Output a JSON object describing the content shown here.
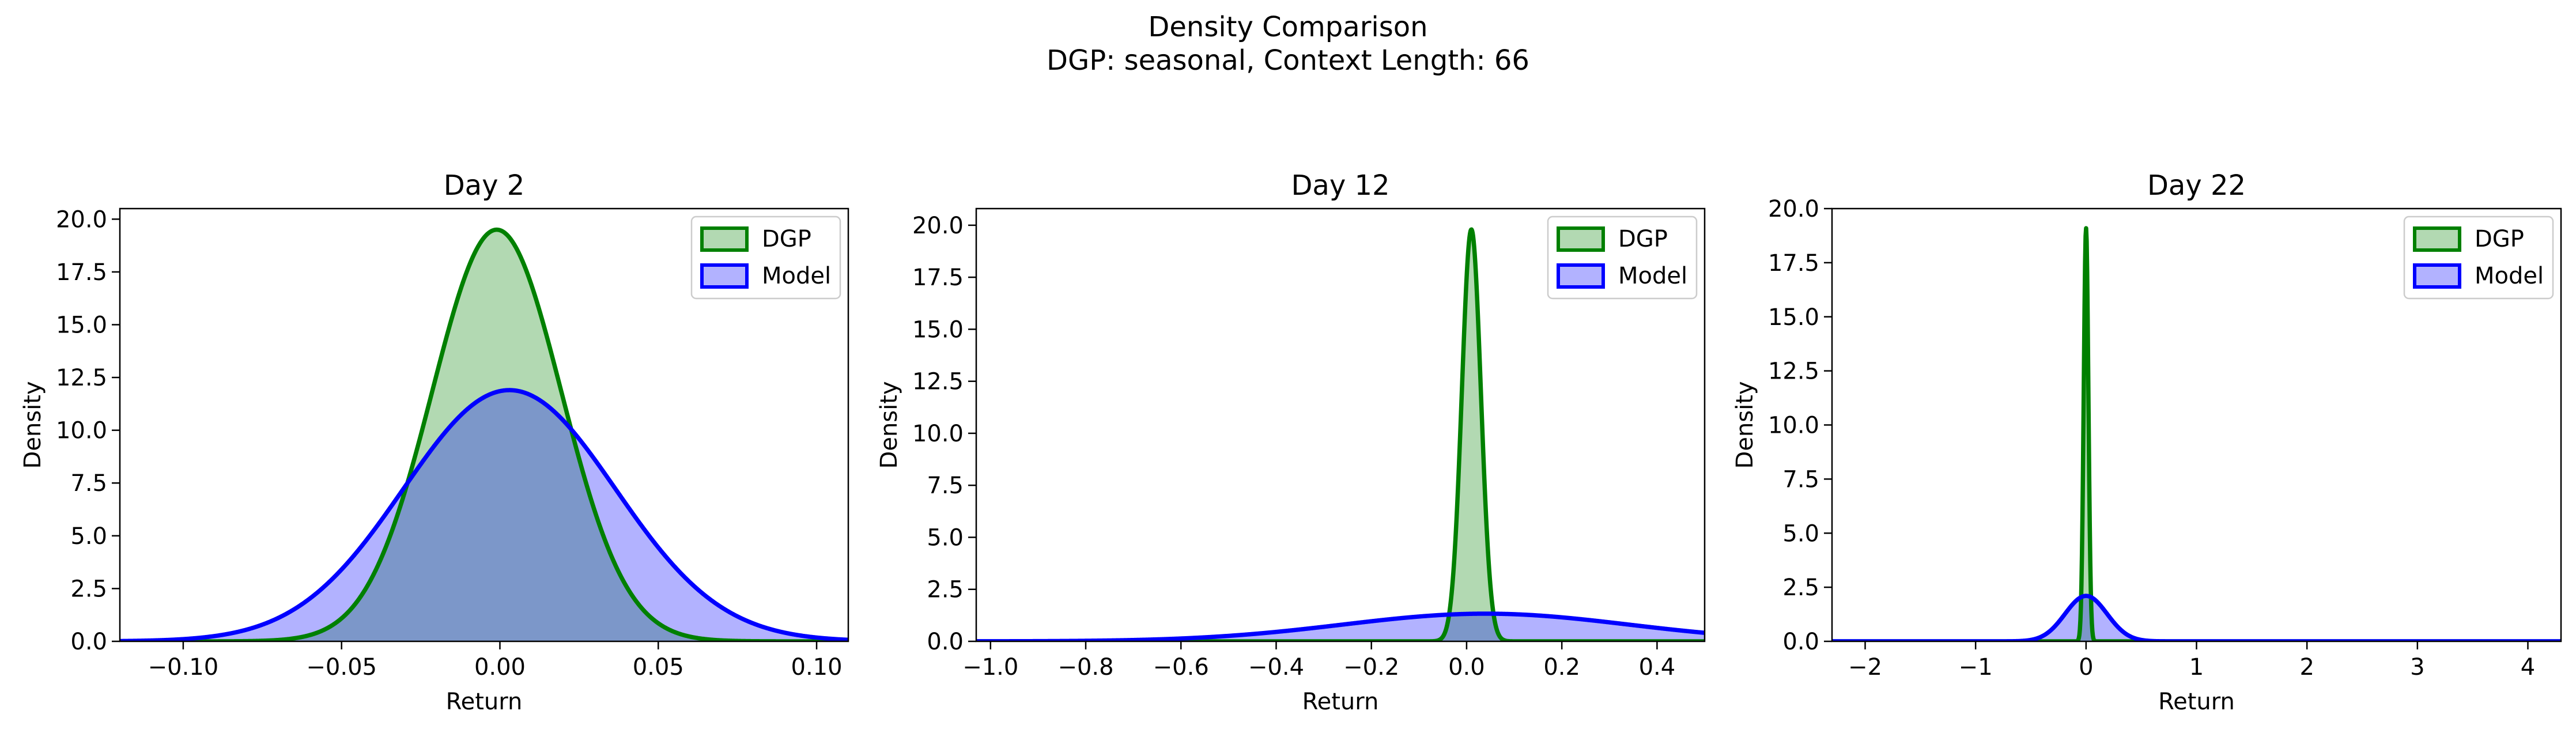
{
  "figure": {
    "suptitle_line1": "Density Comparison",
    "suptitle_line2": "DGP: seasonal, Context Length: 66"
  },
  "colors": {
    "dgp_line": "#008000",
    "dgp_fill": "#b2d8b2",
    "model_line": "#0000ff",
    "model_fill": "#b2b2ff",
    "overlap_fill": "#7f99c8"
  },
  "chart_data": [
    {
      "type": "area",
      "title": "Day 2",
      "xlabel": "Return",
      "ylabel": "Density",
      "xlim": [
        -0.12,
        0.11
      ],
      "ylim": [
        0,
        20.5
      ],
      "xticks": [
        -0.1,
        -0.05,
        0.0,
        0.05,
        0.1
      ],
      "xtick_labels": [
        "−0.10",
        "−0.05",
        "0.00",
        "0.05",
        "0.10"
      ],
      "yticks": [
        0.0,
        2.5,
        5.0,
        7.5,
        10.0,
        12.5,
        15.0,
        17.5,
        20.0
      ],
      "ytick_labels": [
        "0.0",
        "2.5",
        "5.0",
        "7.5",
        "10.0",
        "12.5",
        "15.0",
        "17.5",
        "20.0"
      ],
      "legend": "top-right",
      "series": [
        {
          "name": "DGP",
          "kind": "normal",
          "mean": -0.001,
          "sd": 0.0204,
          "peak": 19.5
        },
        {
          "name": "Model",
          "kind": "normal",
          "mean": 0.003,
          "sd": 0.0335,
          "peak": 11.9
        }
      ]
    },
    {
      "type": "area",
      "title": "Day 12",
      "xlabel": "Return",
      "ylabel": "Density",
      "xlim": [
        -1.03,
        0.5
      ],
      "ylim": [
        0,
        20.8
      ],
      "xticks": [
        -1.0,
        -0.8,
        -0.6,
        -0.4,
        -0.2,
        0.0,
        0.2,
        0.4
      ],
      "xtick_labels": [
        "−1.0",
        "−0.8",
        "−0.6",
        "−0.4",
        "−0.2",
        "0.0",
        "0.2",
        "0.4"
      ],
      "yticks": [
        0.0,
        2.5,
        5.0,
        7.5,
        10.0,
        12.5,
        15.0,
        17.5,
        20.0
      ],
      "ytick_labels": [
        "0.0",
        "2.5",
        "5.0",
        "7.5",
        "10.0",
        "12.5",
        "15.0",
        "17.5",
        "20.0"
      ],
      "legend": "top-right",
      "series": [
        {
          "name": "DGP",
          "kind": "normal",
          "mean": 0.01,
          "sd": 0.02,
          "peak": 19.8
        },
        {
          "name": "Model",
          "kind": "normal",
          "mean": 0.04,
          "sd": 0.3,
          "peak": 1.33
        }
      ]
    },
    {
      "type": "area",
      "title": "Day 22",
      "xlabel": "Return",
      "ylabel": "Density",
      "xlim": [
        -2.3,
        4.3
      ],
      "ylim": [
        0,
        20.0
      ],
      "xticks": [
        -2,
        -1,
        0,
        1,
        2,
        3,
        4
      ],
      "xtick_labels": [
        "−2",
        "−1",
        "0",
        "1",
        "2",
        "3",
        "4"
      ],
      "yticks": [
        0.0,
        2.5,
        5.0,
        7.5,
        10.0,
        12.5,
        15.0,
        17.5,
        20.0
      ],
      "ytick_labels": [
        "0.0",
        "2.5",
        "5.0",
        "7.5",
        "10.0",
        "12.5",
        "15.0",
        "17.5",
        "20.0"
      ],
      "legend": "top-right",
      "series": [
        {
          "name": "DGP",
          "kind": "normal",
          "mean": 0.0,
          "sd": 0.021,
          "peak": 19.1
        },
        {
          "name": "Model",
          "kind": "normal",
          "mean": 0.0,
          "sd": 0.19,
          "peak": 2.1
        }
      ]
    }
  ]
}
